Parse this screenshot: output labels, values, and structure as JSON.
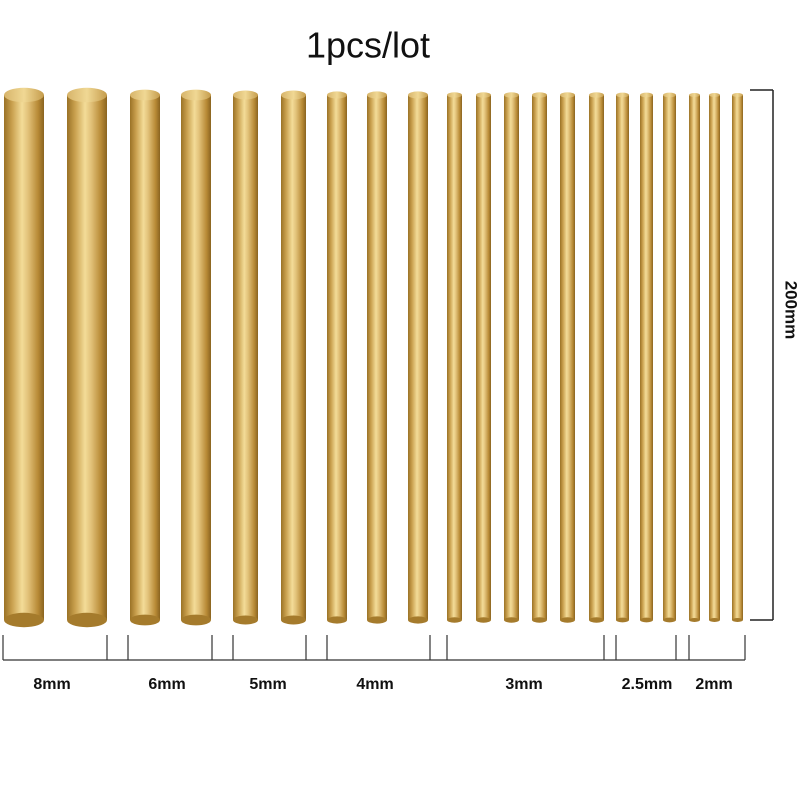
{
  "title": "1pcs/lot",
  "length_label": "200mm",
  "groups": [
    {
      "label": "8mm"
    },
    {
      "label": "6mm"
    },
    {
      "label": "5mm"
    },
    {
      "label": "4mm"
    },
    {
      "label": "3mm"
    },
    {
      "label": "2.5mm"
    },
    {
      "label": "2mm"
    }
  ]
}
